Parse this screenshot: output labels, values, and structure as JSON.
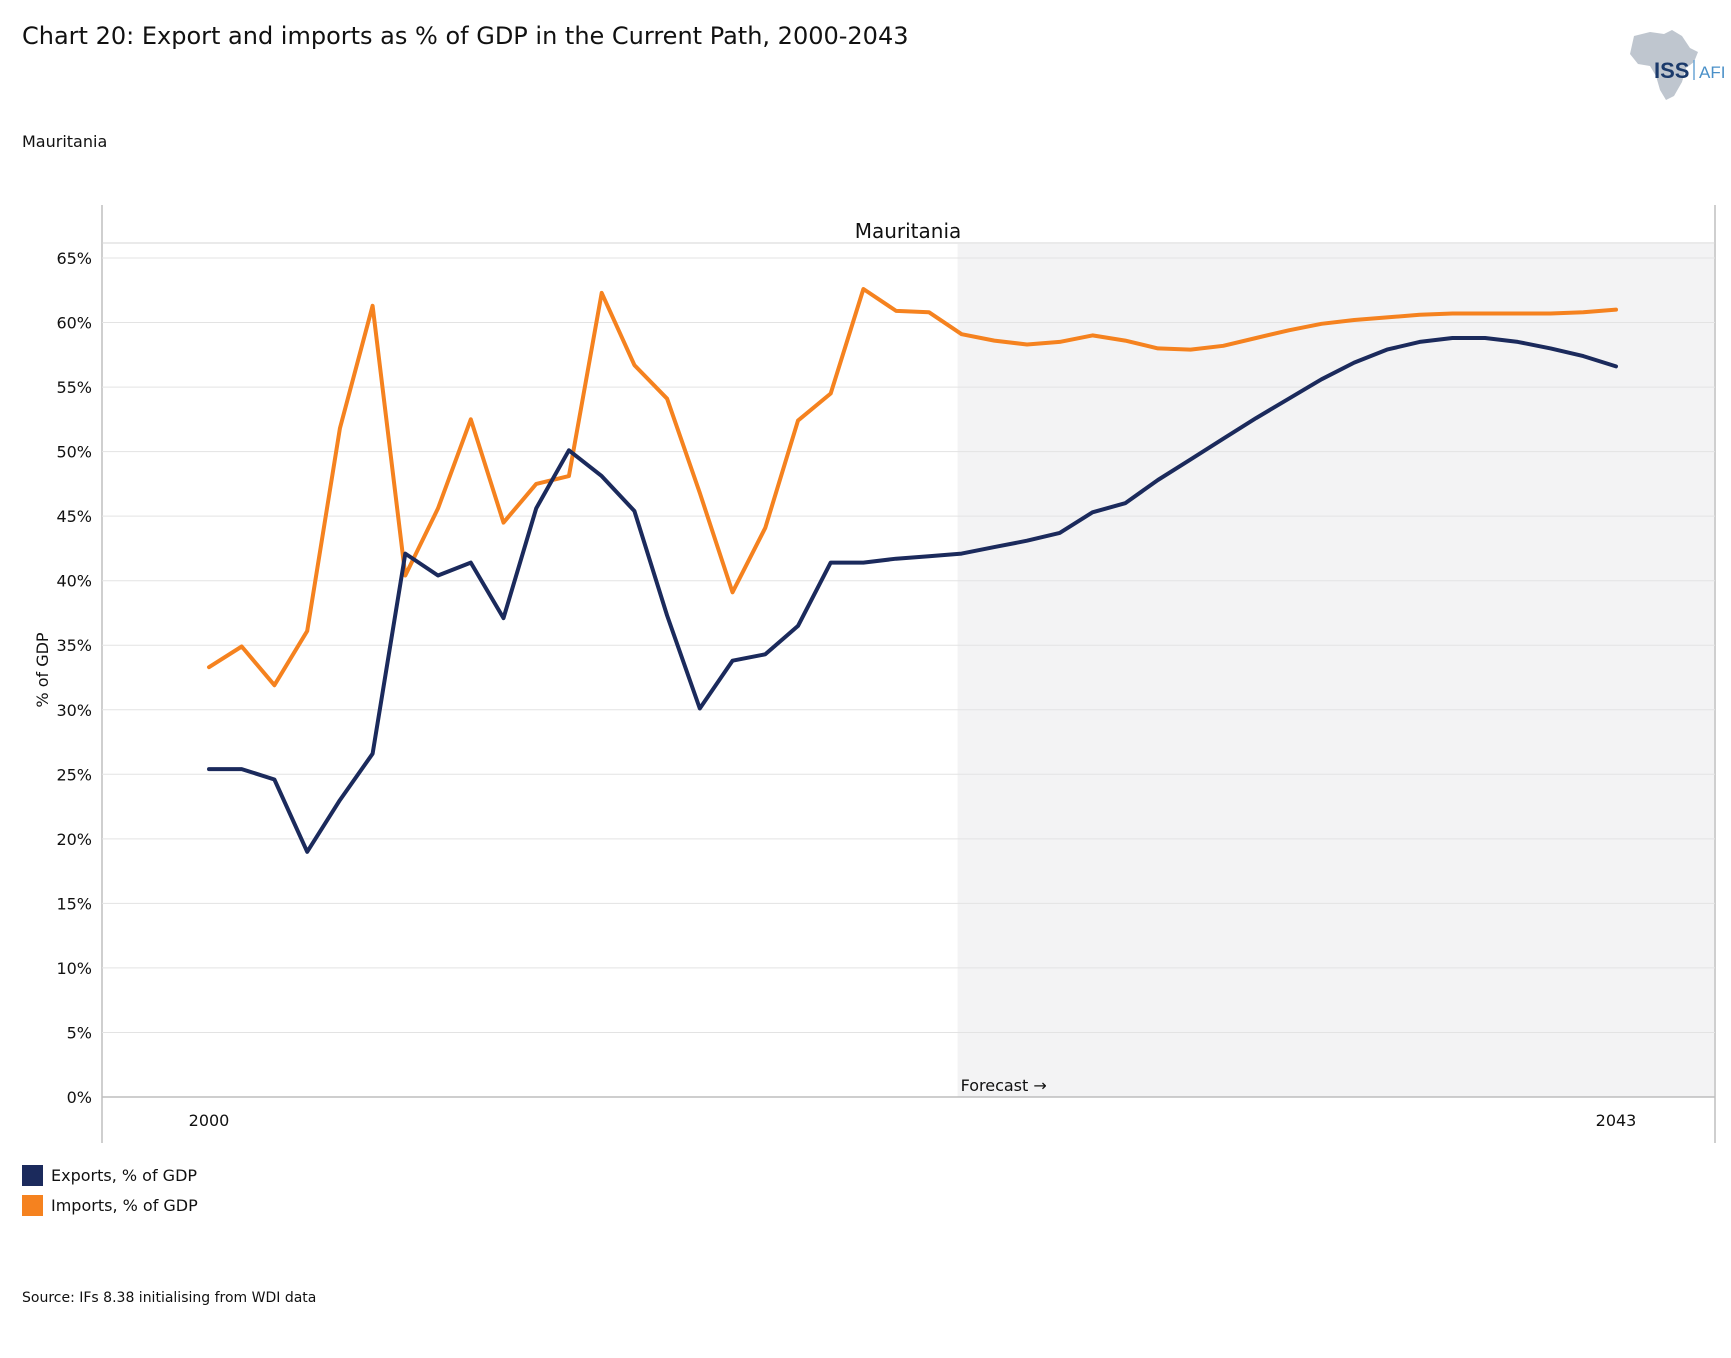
{
  "header": {
    "title": "Chart 20: Export and imports as % of GDP in the Current Path, 2000-2043",
    "subtitle": "Mauritania",
    "logo": {
      "main": "ISS",
      "sub": "AFI",
      "icon": "africa-map-icon"
    }
  },
  "chart_data": {
    "type": "line",
    "panel_title": "Mauritania",
    "ylabel": "% of GDP",
    "ylim": [
      0,
      65
    ],
    "yticks": [
      "0%",
      "5%",
      "10%",
      "15%",
      "20%",
      "25%",
      "30%",
      "35%",
      "40%",
      "45%",
      "50%",
      "55%",
      "60%",
      "65%"
    ],
    "xlim": [
      2000,
      2043
    ],
    "xtick_labels": [
      "2000",
      "2043"
    ],
    "forecast": {
      "label": "Forecast →",
      "start_year": 2023,
      "shade_color": "#f2f2f2"
    },
    "grid": true,
    "legend_position": "bottom-left",
    "x": [
      2000,
      2001,
      2002,
      2003,
      2004,
      2005,
      2006,
      2007,
      2008,
      2009,
      2010,
      2011,
      2012,
      2013,
      2014,
      2015,
      2016,
      2017,
      2018,
      2019,
      2020,
      2021,
      2022,
      2023,
      2024,
      2025,
      2026,
      2027,
      2028,
      2029,
      2030,
      2031,
      2032,
      2033,
      2034,
      2035,
      2036,
      2037,
      2038,
      2039,
      2040,
      2041,
      2042,
      2043
    ],
    "series": [
      {
        "name": "Exports, % of GDP",
        "color": "#1b2a5c",
        "values": [
          25.4,
          25.4,
          24.6,
          19.0,
          23.0,
          26.6,
          42.1,
          40.4,
          41.4,
          37.1,
          45.6,
          50.1,
          48.1,
          45.4,
          37.3,
          30.1,
          33.8,
          34.3,
          36.5,
          41.4,
          41.4,
          41.7,
          41.9,
          42.1,
          42.6,
          43.1,
          43.7,
          45.3,
          46.0,
          47.8,
          49.4,
          51.0,
          52.6,
          54.1,
          55.6,
          56.9,
          57.9,
          58.5,
          58.8,
          58.8,
          58.5,
          58.0,
          57.4,
          56.6
        ]
      },
      {
        "name": "Imports, % of GDP",
        "color": "#f5821f",
        "values": [
          33.3,
          34.9,
          31.9,
          36.1,
          51.8,
          61.3,
          40.4,
          45.6,
          52.5,
          44.5,
          47.5,
          48.1,
          62.3,
          56.7,
          54.1,
          46.8,
          39.1,
          44.1,
          52.4,
          54.5,
          62.6,
          60.9,
          60.8,
          59.1,
          58.6,
          58.3,
          58.5,
          59.0,
          58.6,
          58.0,
          57.9,
          58.2,
          58.8,
          59.4,
          59.9,
          60.2,
          60.4,
          60.6,
          60.7,
          60.7,
          60.7,
          60.7,
          60.8,
          61.0
        ]
      }
    ]
  },
  "source": "Source: IFs 8.38 initialising from WDI data"
}
